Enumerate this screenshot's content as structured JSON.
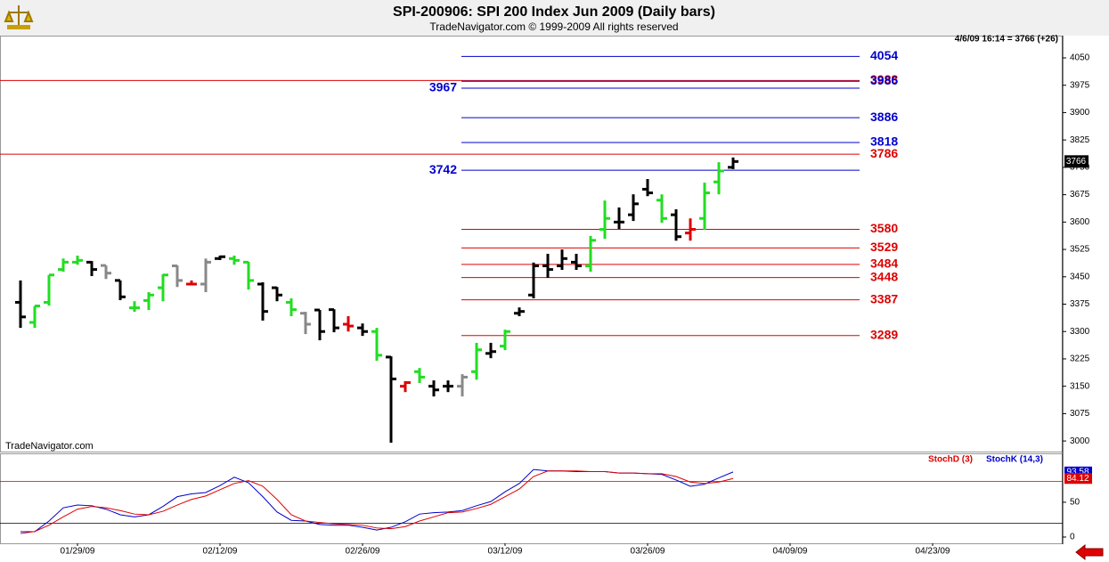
{
  "header": {
    "title": "SPI-200906:  SPI 200 Index Jun 2009  (Daily bars)",
    "subtitle": "TradeNavigator.com © 1999-2009 All rights reserved"
  },
  "chart_data": [
    {
      "type": "ohlc",
      "status": "4/6/09 16:14 = 3766 (+26)",
      "watermark": "TradeNavigator.com",
      "open": [
        3380,
        3325,
        3380,
        3470,
        3490,
        3490,
        3481,
        3440,
        3365,
        3385,
        3420,
        3480,
        3430,
        3430,
        3500,
        3500,
        3490,
        3430,
        3420,
        3380,
        3350,
        3359,
        3360,
        3320,
        3310,
        3300,
        3230,
        3150,
        3190,
        3150,
        3150,
        3150,
        3190,
        3240,
        3260,
        3350,
        3400,
        3480,
        3480,
        3490,
        3480,
        3580,
        3600,
        3620,
        3690,
        3660,
        3620,
        3570,
        3610,
        3710,
        3750
      ],
      "high": [
        3440,
        3370,
        3455,
        3500,
        3508,
        3493,
        3481,
        3440,
        3383,
        3408,
        3457,
        3481,
        3440,
        3500,
        3508,
        3508,
        3491,
        3435,
        3422,
        3391,
        3354,
        3359,
        3361,
        3342,
        3322,
        3310,
        3232,
        3164,
        3200,
        3166,
        3166,
        3183,
        3269,
        3269,
        3305,
        3366,
        3489,
        3513,
        3525,
        3513,
        3562,
        3659,
        3640,
        3676,
        3718,
        3676,
        3635,
        3610,
        3708,
        3764,
        3777
      ],
      "low": [
        3310,
        3310,
        3371,
        3464,
        3483,
        3452,
        3444,
        3386,
        3354,
        3359,
        3383,
        3422,
        3427,
        3408,
        3496,
        3483,
        3415,
        3330,
        3383,
        3342,
        3293,
        3276,
        3298,
        3300,
        3288,
        3220,
        2995,
        3134,
        3159,
        3122,
        3134,
        3122,
        3168,
        3227,
        3249,
        3342,
        3391,
        3447,
        3469,
        3469,
        3464,
        3554,
        3581,
        3603,
        3671,
        3598,
        3549,
        3549,
        3579,
        3676,
        3745
      ],
      "close": [
        3340,
        3370,
        3455,
        3490,
        3495,
        3470,
        3460,
        3395,
        3365,
        3400,
        3455,
        3440,
        3430,
        3490,
        3505,
        3495,
        3440,
        3355,
        3400,
        3360,
        3320,
        3300,
        3310,
        3315,
        3300,
        3235,
        3170,
        3160,
        3175,
        3140,
        3150,
        3175,
        3250,
        3245,
        3300,
        3355,
        3480,
        3470,
        3500,
        3480,
        3550,
        3610,
        3600,
        3650,
        3680,
        3610,
        3560,
        3580,
        3680,
        3740,
        3766
      ],
      "colors": [
        "#000",
        "#22dd22",
        "#22dd22",
        "#22dd22",
        "#22dd22",
        "#000",
        "#888",
        "#000",
        "#22dd22",
        "#22dd22",
        "#22dd22",
        "#888",
        "#dd0000",
        "#888",
        "#000",
        "#22dd22",
        "#22dd22",
        "#000",
        "#000",
        "#22dd22",
        "#888",
        "#000",
        "#000",
        "#dd0000",
        "#000",
        "#22dd22",
        "#000",
        "#dd0000",
        "#22dd22",
        "#000",
        "#000",
        "#888",
        "#22dd22",
        "#000",
        "#22dd22",
        "#000",
        "#000",
        "#000",
        "#000",
        "#000",
        "#22dd22",
        "#22dd22",
        "#000",
        "#000",
        "#000",
        "#22dd22",
        "#000",
        "#dd0000",
        "#22dd22",
        "#22dd22",
        "#000"
      ],
      "levels": [
        {
          "value": 4054,
          "color": "#0000cc",
          "full": false,
          "label_side": "right"
        },
        {
          "value": 3988,
          "color": "#dd0000",
          "full": true,
          "label_side": "right"
        },
        {
          "value": 3986,
          "color": "#0000cc",
          "full": false,
          "label_side": "right"
        },
        {
          "value": 3967,
          "color": "#0000cc",
          "full": false,
          "label_side": "left"
        },
        {
          "value": 3886,
          "color": "#0000cc",
          "full": false,
          "label_side": "right"
        },
        {
          "value": 3818,
          "color": "#0000cc",
          "full": false,
          "label_side": "right"
        },
        {
          "value": 3786,
          "color": "#dd0000",
          "full": true,
          "label_side": "right"
        },
        {
          "value": 3742,
          "color": "#0000cc",
          "full": false,
          "label_side": "left"
        },
        {
          "value": 3580,
          "color": "#dd0000",
          "full": false,
          "label_side": "right"
        },
        {
          "value": 3529,
          "color": "#dd0000",
          "full": false,
          "label_side": "right"
        },
        {
          "value": 3484,
          "color": "#dd0000",
          "full": false,
          "label_side": "right"
        },
        {
          "value": 3448,
          "color": "#dd0000",
          "full": false,
          "label_side": "right"
        },
        {
          "value": 3387,
          "color": "#dd0000",
          "full": false,
          "label_side": "right"
        },
        {
          "value": 3289,
          "color": "#dd0000",
          "full": false,
          "label_side": "right"
        }
      ],
      "xlim": [
        -1.4375,
        73.125
      ],
      "ylim": [
        2971,
        4111
      ],
      "yticks": [
        3000,
        3075,
        3150,
        3225,
        3300,
        3375,
        3450,
        3525,
        3600,
        3675,
        3750,
        3825,
        3900,
        3975,
        4050
      ]
    },
    {
      "type": "line",
      "series": [
        {
          "name": "StochD (3)",
          "color": "#dd0000",
          "values": [
            5,
            8,
            17,
            29,
            40,
            44,
            42,
            38,
            33,
            32,
            37,
            46,
            54,
            59,
            68,
            77,
            81,
            73,
            54,
            32,
            23,
            21,
            19,
            18,
            17,
            13,
            12,
            15,
            23,
            29,
            35,
            36,
            41,
            47,
            58,
            69,
            87,
            95,
            95,
            95,
            94,
            94,
            92,
            92,
            91,
            91,
            87,
            79,
            77,
            79,
            84.12
          ]
        },
        {
          "name": "StochK (14,3)",
          "color": "#0000cc",
          "values": [
            7.7,
            7.7,
            23,
            42,
            46,
            45,
            40,
            32,
            29,
            32,
            44,
            58,
            62,
            64,
            74,
            86,
            78,
            58,
            36,
            24,
            23,
            18,
            17,
            17,
            14,
            10,
            14,
            22,
            33,
            35,
            36,
            38,
            45,
            51,
            65,
            77,
            97,
            95,
            95,
            94,
            94,
            94,
            92,
            92,
            91,
            90,
            82,
            73,
            76,
            85,
            93.58
          ]
        }
      ],
      "reference_lines": [
        20,
        80
      ],
      "xlim": [
        -1.4375,
        73.125
      ],
      "xticks": [
        {
          "value": 4,
          "label": "01/29/09"
        },
        {
          "value": 14,
          "label": "02/12/09"
        },
        {
          "value": 24,
          "label": "02/26/09"
        },
        {
          "value": 34,
          "label": "03/12/09"
        },
        {
          "value": 44,
          "label": "03/26/09"
        },
        {
          "value": 54,
          "label": "04/09/09"
        },
        {
          "value": 64,
          "label": "04/23/09"
        }
      ],
      "ylim": [
        -9,
        119
      ],
      "yticks": [
        0,
        50
      ]
    }
  ]
}
